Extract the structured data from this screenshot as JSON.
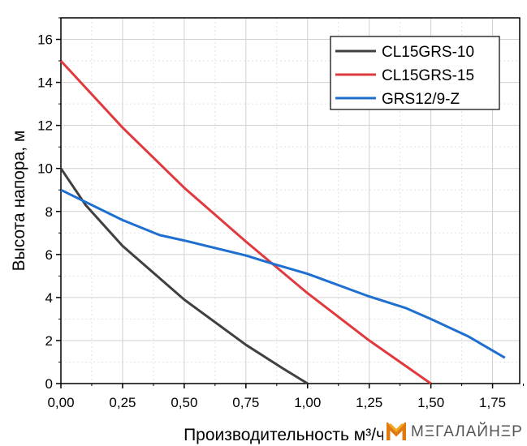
{
  "chart_data": {
    "type": "line",
    "title": "",
    "xlabel": "Производительность м³/ч",
    "ylabel": "Высота напора, м",
    "xlim": [
      0,
      1.86
    ],
    "ylim": [
      0,
      17
    ],
    "xticks": [
      "0,00",
      "0,25",
      "0,50",
      "0,75",
      "1,00",
      "1,25",
      "1,50",
      "1,75"
    ],
    "xtick_values": [
      0,
      0.25,
      0.5,
      0.75,
      1.0,
      1.25,
      1.5,
      1.75
    ],
    "yticks": [
      "0",
      "2",
      "4",
      "6",
      "8",
      "10",
      "12",
      "14",
      "16"
    ],
    "ytick_values": [
      0,
      2,
      4,
      6,
      8,
      10,
      12,
      14,
      16
    ],
    "grid": true,
    "legend_position": "top-right",
    "series": [
      {
        "name": "CL15GRS-10",
        "color": "#404040",
        "x": [
          0,
          0.1,
          0.25,
          0.4,
          0.5,
          0.75,
          0.9,
          1.0
        ],
        "y": [
          10,
          8.3,
          6.4,
          4.9,
          3.9,
          1.8,
          0.7,
          0
        ]
      },
      {
        "name": "CL15GRS-15",
        "color": "#e03a3e",
        "x": [
          0,
          0.25,
          0.5,
          0.75,
          1.0,
          1.25,
          1.5
        ],
        "y": [
          15,
          11.9,
          9.1,
          6.6,
          4.2,
          2.0,
          0
        ]
      },
      {
        "name": "GRS12/9-Z",
        "color": "#1f6fd0",
        "x": [
          0,
          0.25,
          0.4,
          0.5,
          0.75,
          0.85,
          1.0,
          1.25,
          1.4,
          1.5,
          1.65,
          1.8
        ],
        "y": [
          9,
          7.6,
          6.9,
          6.65,
          5.95,
          5.6,
          5.1,
          4.05,
          3.5,
          3.0,
          2.2,
          1.2
        ]
      }
    ]
  },
  "watermark": {
    "text": "МΞГАЛАЙНΞР",
    "accent": "#f08a1c"
  }
}
